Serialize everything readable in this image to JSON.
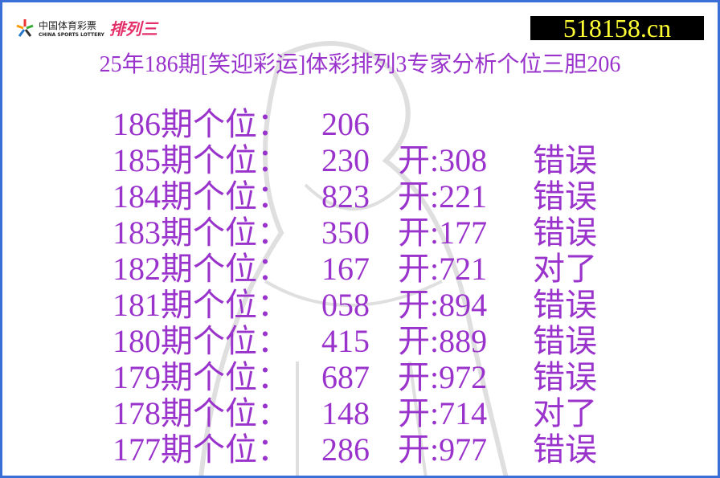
{
  "logo": {
    "cn": "中国体育彩票",
    "en": "CHINA SPORTS LOTTERY",
    "product": "排列三"
  },
  "site": "518158.cn",
  "title": "25年186期[笑迎彩运]体彩排列3专家分析个位三胆206",
  "colors": {
    "text": "#9933cc",
    "site_text": "#ffff33",
    "border": "#3a6fd8"
  },
  "rows": [
    {
      "label": "186期个位：",
      "pick": "206",
      "draw": "",
      "result": ""
    },
    {
      "label": "185期个位：",
      "pick": "230",
      "draw": "开:308",
      "result": "错误"
    },
    {
      "label": "184期个位：",
      "pick": "823",
      "draw": "开:221",
      "result": "错误"
    },
    {
      "label": "183期个位：",
      "pick": "350",
      "draw": "开:177",
      "result": "错误"
    },
    {
      "label": "182期个位：",
      "pick": "167",
      "draw": "开:721",
      "result": "对了"
    },
    {
      "label": "181期个位：",
      "pick": "058",
      "draw": "开:894",
      "result": "错误"
    },
    {
      "label": "180期个位：",
      "pick": "415",
      "draw": "开:889",
      "result": "错误"
    },
    {
      "label": "179期个位：",
      "pick": "687",
      "draw": "开:972",
      "result": "错误"
    },
    {
      "label": "178期个位：",
      "pick": "148",
      "draw": "开:714",
      "result": "对了"
    },
    {
      "label": "177期个位：",
      "pick": "286",
      "draw": "开:977",
      "result": "错误"
    }
  ]
}
